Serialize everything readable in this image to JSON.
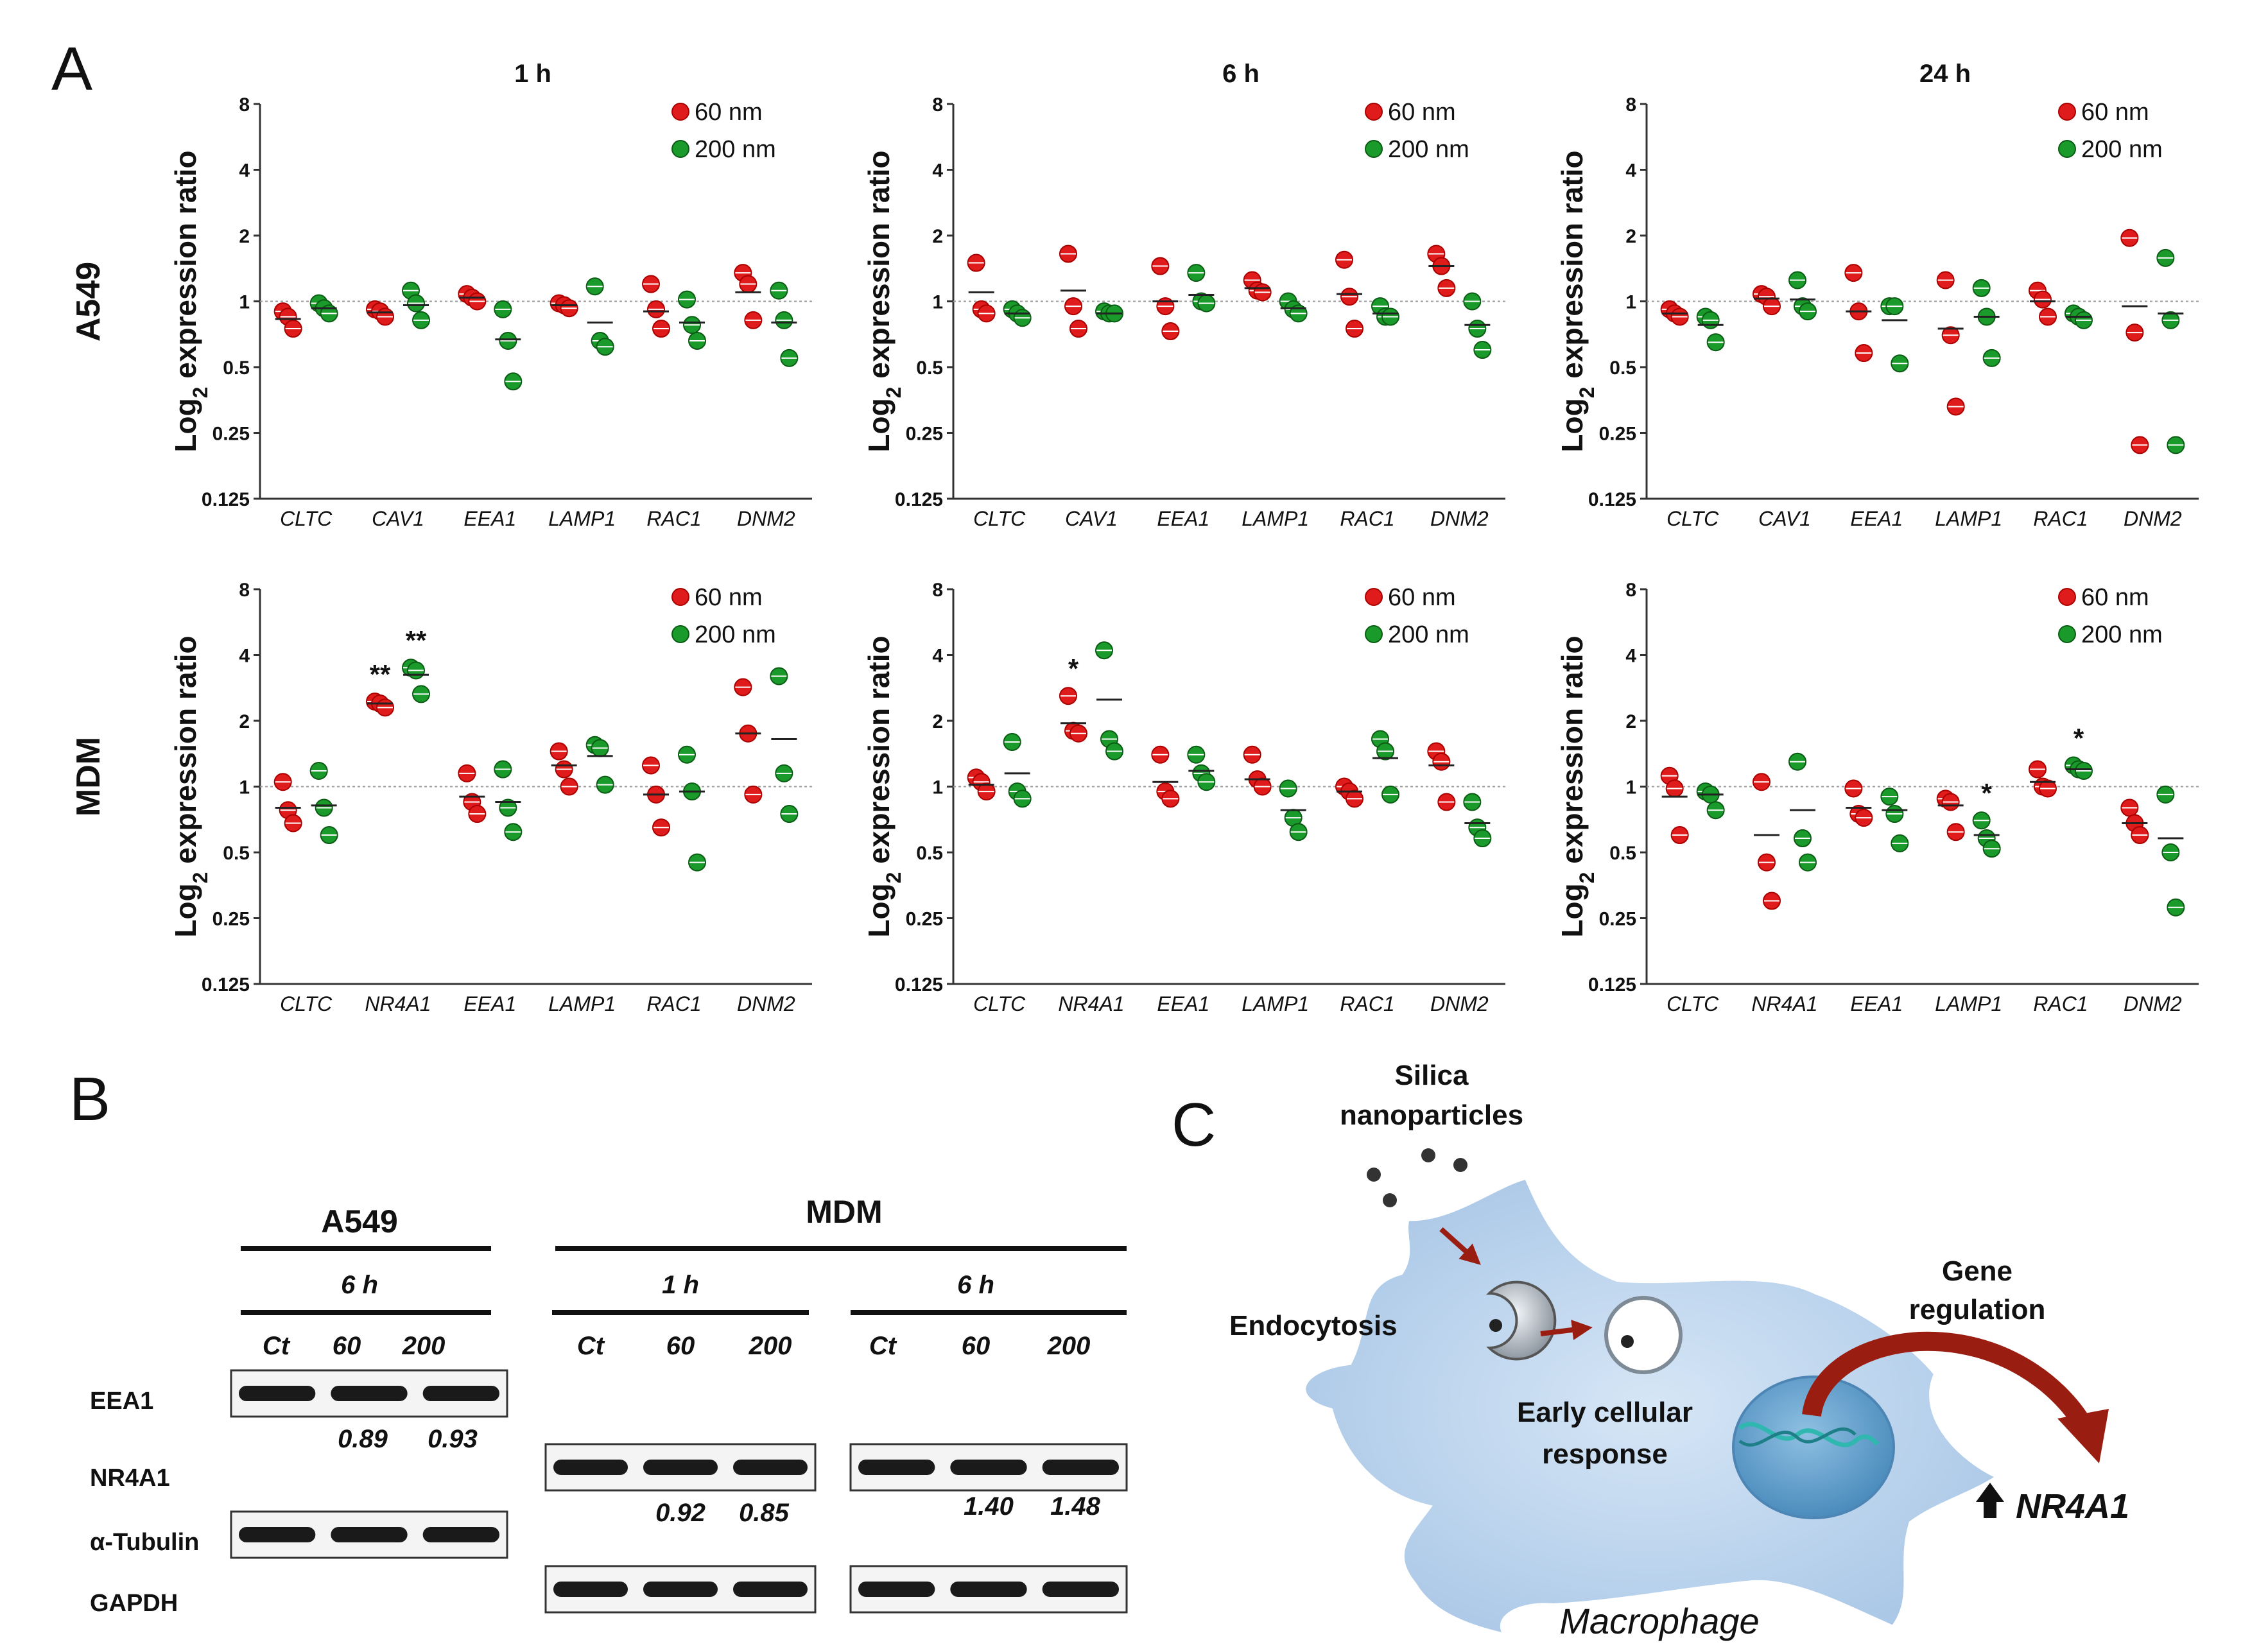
{
  "panel_labels": {
    "a": "A",
    "b": "B",
    "c": "C"
  },
  "row_labels": [
    "A549",
    "MDM"
  ],
  "time_titles": [
    "1 h",
    "6 h",
    "24 h"
  ],
  "ylabel": {
    "pre": "Log",
    "sub": "2",
    "post": " expression ratio"
  },
  "yticks": [
    "8",
    "4",
    "2",
    "1",
    "0.5",
    "0.25",
    "0.125"
  ],
  "legend": {
    "s60": "60 nm",
    "s200": "200 nm"
  },
  "colors": {
    "s60": "#e01b1b",
    "s200": "#1a9a2a",
    "s60_edge": "#a00",
    "s200_edge": "#0b5c14"
  },
  "chart_data": [
    {
      "type": "scatter",
      "title": "A549 1 h",
      "yscale": "log2",
      "ylim": [
        0.125,
        8
      ],
      "categories": [
        "CLTC",
        "CAV1",
        "EEA1",
        "LAMP1",
        "RAC1",
        "DNM2"
      ],
      "series": [
        {
          "name": "60 nm",
          "values": [
            [
              0.9,
              0.85,
              0.75
            ],
            [
              0.92,
              0.9,
              0.85
            ],
            [
              1.08,
              1.04,
              1.0
            ],
            [
              0.98,
              0.96,
              0.93
            ],
            [
              1.2,
              0.92,
              0.75
            ],
            [
              1.35,
              1.2,
              0.82
            ]
          ],
          "mean": [
            0.83,
            0.89,
            1.04,
            0.96,
            0.9,
            1.1
          ],
          "stars": ""
        },
        {
          "name": "200 nm",
          "values": [
            [
              0.98,
              0.93,
              0.88
            ],
            [
              1.12,
              0.98,
              0.82
            ],
            [
              0.92,
              0.66,
              0.43
            ],
            [
              1.17,
              0.66,
              0.62
            ],
            [
              1.02,
              0.78,
              0.66
            ],
            [
              1.12,
              0.82,
              0.55
            ]
          ],
          "mean": [
            0.93,
            0.96,
            0.67,
            0.8,
            0.8,
            0.8
          ],
          "stars": ""
        }
      ]
    },
    {
      "type": "scatter",
      "title": "A549 6 h",
      "yscale": "log2",
      "ylim": [
        0.125,
        8
      ],
      "categories": [
        "CLTC",
        "CAV1",
        "EEA1",
        "LAMP1",
        "RAC1",
        "DNM2"
      ],
      "series": [
        {
          "name": "60 nm",
          "values": [
            [
              1.5,
              0.92,
              0.88
            ],
            [
              1.65,
              0.95,
              0.75
            ],
            [
              1.45,
              0.95,
              0.73
            ],
            [
              1.25,
              1.12,
              1.1
            ],
            [
              1.55,
              1.05,
              0.75
            ],
            [
              1.65,
              1.45,
              1.15
            ]
          ],
          "mean": [
            1.1,
            1.12,
            1.0,
            1.15,
            1.08,
            1.45
          ],
          "stars": ""
        },
        {
          "name": "200 nm",
          "values": [
            [
              0.92,
              0.88,
              0.84
            ],
            [
              0.9,
              0.88,
              0.88
            ],
            [
              1.35,
              1.0,
              0.98
            ],
            [
              1.0,
              0.92,
              0.88
            ],
            [
              0.95,
              0.85,
              0.85
            ],
            [
              1.0,
              0.75,
              0.6
            ]
          ],
          "mean": [
            0.88,
            0.88,
            1.07,
            0.93,
            0.88,
            0.78
          ],
          "stars": ""
        }
      ]
    },
    {
      "type": "scatter",
      "title": "A549 24 h",
      "yscale": "log2",
      "ylim": [
        0.125,
        8
      ],
      "categories": [
        "CLTC",
        "CAV1",
        "EEA1",
        "LAMP1",
        "RAC1",
        "DNM2"
      ],
      "series": [
        {
          "name": "60 nm",
          "values": [
            [
              0.92,
              0.88,
              0.85
            ],
            [
              1.08,
              1.05,
              0.95
            ],
            [
              1.35,
              0.9,
              0.58
            ],
            [
              1.25,
              0.7,
              0.33
            ],
            [
              1.12,
              1.02,
              0.85
            ],
            [
              1.95,
              0.72,
              0.22
            ]
          ],
          "mean": [
            0.88,
            1.03,
            0.9,
            0.75,
            1.0,
            0.95
          ],
          "stars": ""
        },
        {
          "name": "200 nm",
          "values": [
            [
              0.85,
              0.82,
              0.65
            ],
            [
              1.25,
              0.95,
              0.9
            ],
            [
              0.95,
              0.95,
              0.52
            ],
            [
              1.15,
              0.85,
              0.55
            ],
            [
              0.88,
              0.85,
              0.82
            ],
            [
              1.58,
              0.82,
              0.22
            ]
          ],
          "mean": [
            0.78,
            1.02,
            0.82,
            0.85,
            0.85,
            0.88
          ],
          "stars": ""
        }
      ]
    },
    {
      "type": "scatter",
      "title": "MDM 1 h",
      "yscale": "log2",
      "ylim": [
        0.125,
        8
      ],
      "categories": [
        "CLTC",
        "NR4A1",
        "EEA1",
        "LAMP1",
        "RAC1",
        "DNM2"
      ],
      "series": [
        {
          "name": "60 nm",
          "values": [
            [
              1.05,
              0.78,
              0.68
            ],
            [
              2.45,
              2.4,
              2.3
            ],
            [
              1.15,
              0.85,
              0.75
            ],
            [
              1.45,
              1.2,
              1.0
            ],
            [
              1.25,
              0.92,
              0.65
            ],
            [
              2.85,
              1.75,
              0.92
            ]
          ],
          "mean": [
            0.8,
            2.4,
            0.9,
            1.25,
            0.92,
            1.75
          ],
          "stars": "**"
        },
        {
          "name": "200 nm",
          "values": [
            [
              1.18,
              0.8,
              0.6
            ],
            [
              3.5,
              3.4,
              2.65
            ],
            [
              1.2,
              0.8,
              0.62
            ],
            [
              1.55,
              1.5,
              1.02
            ],
            [
              1.4,
              0.95,
              0.45
            ],
            [
              3.2,
              1.15,
              0.75
            ]
          ],
          "mean": [
            0.82,
            3.25,
            0.85,
            1.38,
            0.95,
            1.65
          ],
          "stars": "**"
        }
      ]
    },
    {
      "type": "scatter",
      "title": "MDM 6 h",
      "yscale": "log2",
      "ylim": [
        0.125,
        8
      ],
      "categories": [
        "CLTC",
        "NR4A1",
        "EEA1",
        "LAMP1",
        "RAC1",
        "DNM2"
      ],
      "series": [
        {
          "name": "60 nm",
          "values": [
            [
              1.1,
              1.05,
              0.95
            ],
            [
              2.6,
              1.8,
              1.75
            ],
            [
              1.4,
              0.95,
              0.88
            ],
            [
              1.4,
              1.08,
              1.0
            ],
            [
              1.0,
              0.95,
              0.88
            ],
            [
              1.45,
              1.3,
              0.85
            ]
          ],
          "mean": [
            1.02,
            1.95,
            1.05,
            1.08,
            0.95,
            1.25
          ],
          "stars": "*"
        },
        {
          "name": "200 nm",
          "values": [
            [
              1.6,
              0.95,
              0.88
            ],
            [
              4.2,
              1.65,
              1.45
            ],
            [
              1.4,
              1.15,
              1.05
            ],
            [
              0.98,
              0.72,
              0.62
            ],
            [
              1.65,
              1.45,
              0.92
            ],
            [
              0.85,
              0.65,
              0.58
            ]
          ],
          "mean": [
            1.15,
            2.5,
            1.18,
            0.78,
            1.35,
            0.68
          ],
          "stars": ""
        }
      ]
    },
    {
      "type": "scatter",
      "title": "MDM 24 h",
      "yscale": "log2",
      "ylim": [
        0.125,
        8
      ],
      "categories": [
        "CLTC",
        "NR4A1",
        "EEA1",
        "LAMP1",
        "RAC1",
        "DNM2"
      ],
      "series": [
        {
          "name": "60 nm",
          "values": [
            [
              1.12,
              0.98,
              0.6
            ],
            [
              1.05,
              0.45,
              0.3
            ],
            [
              0.98,
              0.75,
              0.72
            ],
            [
              0.88,
              0.85,
              0.62
            ],
            [
              1.2,
              1.0,
              0.98
            ],
            [
              0.8,
              0.68,
              0.6
            ]
          ],
          "mean": [
            0.9,
            0.6,
            0.8,
            0.82,
            1.05,
            0.68
          ],
          "stars": ""
        },
        {
          "name": "200 nm",
          "values": [
            [
              0.95,
              0.92,
              0.78
            ],
            [
              1.3,
              0.58,
              0.45
            ],
            [
              0.9,
              0.75,
              0.55
            ],
            [
              0.7,
              0.58,
              0.52
            ],
            [
              1.25,
              1.2,
              1.18
            ],
            [
              0.92,
              0.5,
              0.28
            ]
          ],
          "mean": [
            0.92,
            0.78,
            0.78,
            0.6,
            1.2,
            0.58
          ],
          "stars": "*"
        }
      ]
    }
  ],
  "blot": {
    "a549_title": "A549",
    "a549_time": "6 h",
    "mdm_title": "MDM",
    "mdm_time1": "1 h",
    "mdm_time2": "6 h",
    "lanes": [
      "Ct",
      "60",
      "200"
    ],
    "row_labels": [
      "EEA1",
      "NR4A1",
      "α-Tubulin",
      "GAPDH"
    ],
    "a549_eea1_quant": [
      "0.89",
      "0.93"
    ],
    "mdm1_nr4a1_quant": [
      "0.92",
      "0.85"
    ],
    "mdm6_nr4a1_quant": [
      "1.40",
      "1.48"
    ]
  },
  "schematic": {
    "silica": "Silica",
    "nanoparticles": "nanoparticles",
    "endocytosis": "Endocytosis",
    "early1": "Early cellular",
    "early2": "response",
    "gene1": "Gene",
    "gene2": "regulation",
    "nr4a1": "NR4A1",
    "macrophage": "Macrophage"
  }
}
